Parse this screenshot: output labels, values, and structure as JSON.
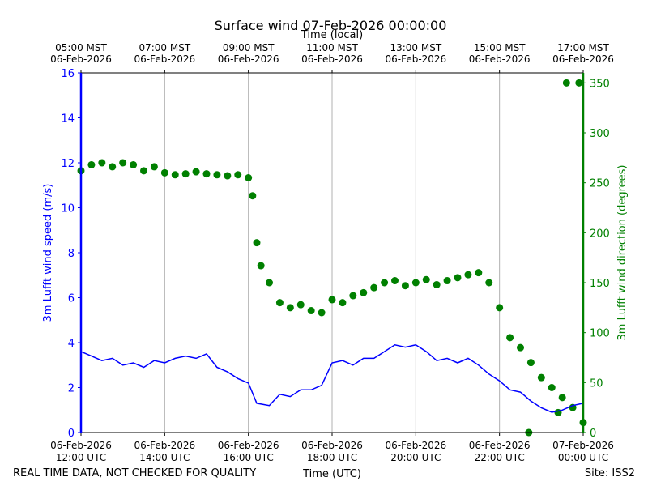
{
  "chart_data": {
    "type": "line+scatter",
    "title": "Surface wind 07-Feb-2026 00:00:00",
    "top_axis_title": "Time (local)",
    "xlabel": "Time (UTC)",
    "ylabel_left": "3m Lufft wind speed (m/s)",
    "ylabel_right": "3m Lufft wind direction (degrees)",
    "footer_left": "REAL TIME DATA, NOT CHECKED FOR QUALITY",
    "footer_right": "Site: ISS2",
    "colors": {
      "speed": "#0000ff",
      "direction": "#008000",
      "grid": "#b0b0b0",
      "axis": "#000000"
    },
    "x_range_hours_utc": [
      12,
      24
    ],
    "ylim_left": [
      0,
      16
    ],
    "ylim_right": [
      0,
      360
    ],
    "left_ticks": [
      0,
      2,
      4,
      6,
      8,
      10,
      12,
      14,
      16
    ],
    "right_ticks": [
      0,
      50,
      100,
      150,
      200,
      250,
      300,
      350
    ],
    "bottom_ticks": [
      {
        "hour": 12,
        "line1": "06-Feb-2026",
        "line2": "12:00 UTC"
      },
      {
        "hour": 14,
        "line1": "06-Feb-2026",
        "line2": "14:00 UTC"
      },
      {
        "hour": 16,
        "line1": "06-Feb-2026",
        "line2": "16:00 UTC"
      },
      {
        "hour": 18,
        "line1": "06-Feb-2026",
        "line2": "18:00 UTC"
      },
      {
        "hour": 20,
        "line1": "06-Feb-2026",
        "line2": "20:00 UTC"
      },
      {
        "hour": 22,
        "line1": "06-Feb-2026",
        "line2": "22:00 UTC"
      },
      {
        "hour": 24,
        "line1": "07-Feb-2026",
        "line2": "00:00 UTC"
      }
    ],
    "top_ticks": [
      {
        "hour": 12,
        "line1": "05:00 MST",
        "line2": "06-Feb-2026"
      },
      {
        "hour": 14,
        "line1": "07:00 MST",
        "line2": "06-Feb-2026"
      },
      {
        "hour": 16,
        "line1": "09:00 MST",
        "line2": "06-Feb-2026"
      },
      {
        "hour": 18,
        "line1": "11:00 MST",
        "line2": "06-Feb-2026"
      },
      {
        "hour": 20,
        "line1": "13:00 MST",
        "line2": "06-Feb-2026"
      },
      {
        "hour": 22,
        "line1": "15:00 MST",
        "line2": "06-Feb-2026"
      },
      {
        "hour": 24,
        "line1": "17:00 MST",
        "line2": "06-Feb-2026"
      }
    ],
    "series": [
      {
        "name": "3m Lufft wind speed (m/s)",
        "axis": "left",
        "style": "line",
        "x_hours": [
          12.0,
          12.25,
          12.5,
          12.75,
          13.0,
          13.25,
          13.5,
          13.75,
          14.0,
          14.25,
          14.5,
          14.75,
          15.0,
          15.25,
          15.5,
          15.75,
          16.0,
          16.2,
          16.5,
          16.75,
          17.0,
          17.25,
          17.5,
          17.75,
          18.0,
          18.25,
          18.5,
          18.75,
          19.0,
          19.25,
          19.5,
          19.75,
          20.0,
          20.25,
          20.5,
          20.75,
          21.0,
          21.25,
          21.5,
          21.75,
          22.0,
          22.25,
          22.5,
          22.75,
          23.0,
          23.25,
          23.5,
          23.75,
          24.0
        ],
        "values": [
          3.6,
          3.4,
          3.2,
          3.3,
          3.0,
          3.1,
          2.9,
          3.2,
          3.1,
          3.3,
          3.4,
          3.3,
          3.5,
          2.9,
          2.7,
          2.4,
          2.2,
          1.3,
          1.2,
          1.7,
          1.6,
          1.9,
          1.9,
          2.1,
          3.1,
          3.2,
          3.0,
          3.3,
          3.3,
          3.6,
          3.9,
          3.8,
          3.9,
          3.6,
          3.2,
          3.3,
          3.1,
          3.3,
          3.0,
          2.6,
          2.3,
          1.9,
          1.8,
          1.4,
          1.1,
          0.9,
          1.0,
          1.2,
          1.3
        ]
      },
      {
        "name": "3m Lufft wind direction (degrees)",
        "axis": "right",
        "style": "scatter",
        "x_hours": [
          12.0,
          12.25,
          12.5,
          12.75,
          13.0,
          13.25,
          13.5,
          13.75,
          14.0,
          14.25,
          14.5,
          14.75,
          15.0,
          15.25,
          15.5,
          15.75,
          16.0,
          16.1,
          16.2,
          16.3,
          16.5,
          16.75,
          17.0,
          17.25,
          17.5,
          17.75,
          18.0,
          18.25,
          18.5,
          18.75,
          19.0,
          19.25,
          19.5,
          19.75,
          20.0,
          20.25,
          20.5,
          20.75,
          21.0,
          21.25,
          21.5,
          21.75,
          22.0,
          22.25,
          22.5,
          22.75,
          23.0,
          23.25,
          23.5,
          23.75,
          24.0,
          22.7,
          23.4,
          23.6,
          23.9
        ],
        "values": [
          262,
          268,
          270,
          266,
          270,
          268,
          262,
          266,
          260,
          258,
          259,
          261,
          259,
          258,
          257,
          258,
          255,
          237,
          190,
          167,
          150,
          130,
          125,
          128,
          122,
          120,
          133,
          130,
          137,
          140,
          145,
          150,
          152,
          147,
          150,
          153,
          148,
          152,
          155,
          158,
          160,
          150,
          125,
          95,
          85,
          70,
          55,
          45,
          35,
          25,
          10,
          0,
          20,
          350,
          350
        ]
      }
    ]
  }
}
